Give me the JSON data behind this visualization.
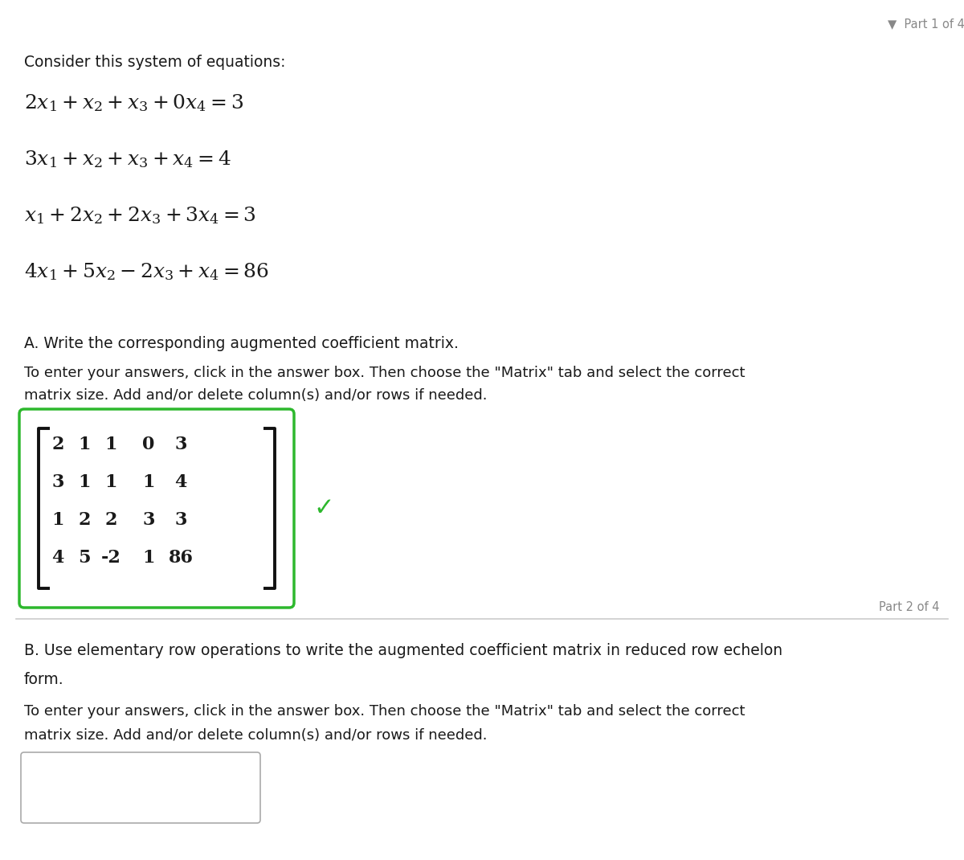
{
  "bg_color": "#ffffff",
  "part1_label": "Part 1 of 4",
  "part2_label": "Part 2 of 4",
  "triangle_char": "▼",
  "consider_text": "Consider this system of equations:",
  "eq_latex": [
    "$\\mathbf{2}x_1 + x_2 + x_3 + \\mathbf{0}x_4 = \\mathbf{3}$",
    "$\\mathbf{3}x_1 + x_2 + x_3 + x_4 = \\mathbf{4}$",
    "$x_1 + \\mathbf{2}x_2 + \\mathbf{2}x_3 + \\mathbf{3}x_4 = \\mathbf{3}$",
    "$\\mathbf{4}x_1 + \\mathbf{5}x_2 - \\mathbf{2}x_3 + x_4 = \\mathbf{86}$"
  ],
  "eq_latex2": [
    "$2x_1 + x_2 + x_3 + 0x_4 = 3$",
    "$3x_1 + x_2 + x_3 + x_4 = 4$",
    "$x_1 + 2x_2 + 2x_3 + 3x_4 = 3$",
    "$4x_1 + 5x_2 - 2x_3 + x_4 = 86$"
  ],
  "part_a_label": "A. Write the corresponding augmented coefficient matrix.",
  "part_a_instr1": "To enter your answers, click in the answer box. Then choose the \"Matrix\" tab and select the correct",
  "part_a_instr2": "matrix size. Add and/or delete column(s) and/or rows if needed.",
  "matrix_rows": [
    [
      "2",
      "1",
      "1",
      "0",
      "3"
    ],
    [
      "3",
      "1",
      "1",
      "1",
      "4"
    ],
    [
      "1",
      "2",
      "2",
      "3",
      "3"
    ],
    [
      "4",
      "5",
      "-2",
      "1",
      "86"
    ]
  ],
  "part_b_label": "B. Use elementary row operations to write the augmented coefficient matrix in reduced row echelon",
  "part_b_label2": "form.",
  "part_b_instr1": "To enter your answers, click in the answer box. Then choose the \"Matrix\" tab and select the correct",
  "part_b_instr2": "matrix size. Add and/or delete column(s) and/or rows if needed.",
  "matrix_border_color": "#2db82d",
  "check_color": "#2db82d",
  "text_color": "#1a1a1a",
  "gray_color": "#888888",
  "line_color": "#cccccc",
  "bracket_color": "#111111"
}
